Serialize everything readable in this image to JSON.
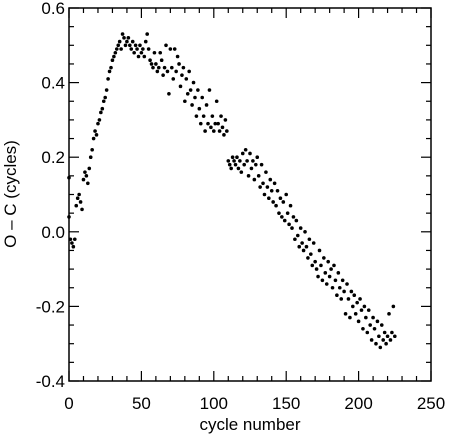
{
  "chart_data": {
    "type": "scatter",
    "xlabel": "cycle number",
    "ylabel": "O – C (cycles)",
    "xlim": [
      0,
      250
    ],
    "ylim": [
      -0.4,
      0.6
    ],
    "xticks": [
      0,
      50,
      100,
      150,
      200,
      250
    ],
    "xtick_labels": [
      "0",
      "50",
      "100",
      "150",
      "200",
      "250"
    ],
    "yticks": [
      -0.4,
      -0.2,
      0.0,
      0.2,
      0.4,
      0.6
    ],
    "ytick_labels": [
      "-0.4",
      "-0.2",
      "0.0",
      "0.2",
      "0.4",
      "0.6"
    ],
    "grid": false,
    "marker_color": "#000000",
    "points": [
      [
        0,
        0.145
      ],
      [
        0,
        0.04
      ],
      [
        1,
        -0.02
      ],
      [
        2,
        -0.03
      ],
      [
        3,
        -0.04
      ],
      [
        4,
        -0.02
      ],
      [
        5,
        0.07
      ],
      [
        6,
        0.09
      ],
      [
        7,
        0.1
      ],
      [
        8,
        0.08
      ],
      [
        9,
        0.06
      ],
      [
        10,
        0.14
      ],
      [
        11,
        0.16
      ],
      [
        12,
        0.15
      ],
      [
        13,
        0.13
      ],
      [
        14,
        0.17
      ],
      [
        15,
        0.2
      ],
      [
        16,
        0.22
      ],
      [
        17,
        0.25
      ],
      [
        18,
        0.27
      ],
      [
        19,
        0.26
      ],
      [
        20,
        0.29
      ],
      [
        21,
        0.3
      ],
      [
        22,
        0.32
      ],
      [
        23,
        0.33
      ],
      [
        24,
        0.35
      ],
      [
        25,
        0.36
      ],
      [
        26,
        0.38
      ],
      [
        27,
        0.41
      ],
      [
        28,
        0.43
      ],
      [
        29,
        0.44
      ],
      [
        30,
        0.46
      ],
      [
        31,
        0.47
      ],
      [
        32,
        0.48
      ],
      [
        33,
        0.49
      ],
      [
        34,
        0.5
      ],
      [
        35,
        0.51
      ],
      [
        36,
        0.49
      ],
      [
        37,
        0.53
      ],
      [
        38,
        0.52
      ],
      [
        39,
        0.5
      ],
      [
        40,
        0.51
      ],
      [
        41,
        0.52
      ],
      [
        42,
        0.5
      ],
      [
        43,
        0.49
      ],
      [
        44,
        0.51
      ],
      [
        45,
        0.48
      ],
      [
        46,
        0.5
      ],
      [
        47,
        0.49
      ],
      [
        48,
        0.47
      ],
      [
        49,
        0.5
      ],
      [
        50,
        0.48
      ],
      [
        51,
        0.49
      ],
      [
        52,
        0.47
      ],
      [
        53,
        0.51
      ],
      [
        54,
        0.53
      ],
      [
        55,
        0.49
      ],
      [
        56,
        0.46
      ],
      [
        57,
        0.45
      ],
      [
        58,
        0.44
      ],
      [
        59,
        0.48
      ],
      [
        60,
        0.45
      ],
      [
        61,
        0.43
      ],
      [
        62,
        0.44
      ],
      [
        63,
        0.48
      ],
      [
        64,
        0.46
      ],
      [
        65,
        0.42
      ],
      [
        66,
        0.44
      ],
      [
        67,
        0.5
      ],
      [
        68,
        0.43
      ],
      [
        69,
        0.37
      ],
      [
        70,
        0.49
      ],
      [
        71,
        0.44
      ],
      [
        72,
        0.41
      ],
      [
        73,
        0.49
      ],
      [
        74,
        0.43
      ],
      [
        75,
        0.47
      ],
      [
        76,
        0.45
      ],
      [
        77,
        0.39
      ],
      [
        78,
        0.42
      ],
      [
        79,
        0.44
      ],
      [
        80,
        0.35
      ],
      [
        81,
        0.41
      ],
      [
        82,
        0.37
      ],
      [
        83,
        0.43
      ],
      [
        84,
        0.38
      ],
      [
        85,
        0.34
      ],
      [
        86,
        0.4
      ],
      [
        87,
        0.36
      ],
      [
        88,
        0.31
      ],
      [
        89,
        0.38
      ],
      [
        90,
        0.33
      ],
      [
        91,
        0.29
      ],
      [
        92,
        0.36
      ],
      [
        93,
        0.31
      ],
      [
        94,
        0.27
      ],
      [
        95,
        0.34
      ],
      [
        96,
        0.29
      ],
      [
        97,
        0.38
      ],
      [
        98,
        0.28
      ],
      [
        99,
        0.31
      ],
      [
        100,
        0.27
      ],
      [
        101,
        0.29
      ],
      [
        102,
        0.35
      ],
      [
        103,
        0.29
      ],
      [
        104,
        0.27
      ],
      [
        105,
        0.31
      ],
      [
        106,
        0.28
      ],
      [
        107,
        0.26
      ],
      [
        108,
        0.3
      ],
      [
        109,
        0.27
      ],
      [
        110,
        0.19
      ],
      [
        111,
        0.18
      ],
      [
        112,
        0.17
      ],
      [
        113,
        0.2
      ],
      [
        114,
        0.19
      ],
      [
        115,
        0.18
      ],
      [
        116,
        0.2
      ],
      [
        117,
        0.17
      ],
      [
        118,
        0.19
      ],
      [
        119,
        0.16
      ],
      [
        120,
        0.21
      ],
      [
        121,
        0.18
      ],
      [
        122,
        0.22
      ],
      [
        123,
        0.19
      ],
      [
        124,
        0.15
      ],
      [
        125,
        0.21
      ],
      [
        126,
        0.17
      ],
      [
        127,
        0.19
      ],
      [
        128,
        0.14
      ],
      [
        129,
        0.18
      ],
      [
        130,
        0.2
      ],
      [
        131,
        0.15
      ],
      [
        132,
        0.12
      ],
      [
        133,
        0.18
      ],
      [
        134,
        0.13
      ],
      [
        135,
        0.1
      ],
      [
        136,
        0.16
      ],
      [
        137,
        0.12
      ],
      [
        138,
        0.09
      ],
      [
        139,
        0.14
      ],
      [
        140,
        0.11
      ],
      [
        141,
        0.08
      ],
      [
        142,
        0.13
      ],
      [
        143,
        0.07
      ],
      [
        144,
        0.11
      ],
      [
        145,
        0.05
      ],
      [
        146,
        0.09
      ],
      [
        147,
        0.04
      ],
      [
        148,
        0.08
      ],
      [
        149,
        0.03
      ],
      [
        150,
        0.1
      ],
      [
        151,
        0.05
      ],
      [
        152,
        0.02
      ],
      [
        153,
        0.07
      ],
      [
        154,
        0.01
      ],
      [
        155,
        0.04
      ],
      [
        156,
        -0.02
      ],
      [
        157,
        0.03
      ],
      [
        158,
        -0.01
      ],
      [
        159,
        -0.04
      ],
      [
        160,
        0.01
      ],
      [
        161,
        -0.03
      ],
      [
        162,
        -0.05
      ],
      [
        163,
        0.0
      ],
      [
        164,
        -0.04
      ],
      [
        165,
        -0.07
      ],
      [
        166,
        -0.02
      ],
      [
        167,
        -0.06
      ],
      [
        168,
        -0.09
      ],
      [
        169,
        -0.03
      ],
      [
        170,
        -0.08
      ],
      [
        171,
        -0.1
      ],
      [
        172,
        -0.12
      ],
      [
        173,
        -0.05
      ],
      [
        174,
        -0.09
      ],
      [
        175,
        -0.13
      ],
      [
        176,
        -0.07
      ],
      [
        177,
        -0.11
      ],
      [
        178,
        -0.14
      ],
      [
        179,
        -0.08
      ],
      [
        180,
        -0.12
      ],
      [
        181,
        -0.1
      ],
      [
        182,
        -0.15
      ],
      [
        183,
        -0.09
      ],
      [
        184,
        -0.13
      ],
      [
        185,
        -0.17
      ],
      [
        186,
        -0.11
      ],
      [
        187,
        -0.15
      ],
      [
        188,
        -0.18
      ],
      [
        189,
        -0.13
      ],
      [
        190,
        -0.16
      ],
      [
        191,
        -0.22
      ],
      [
        192,
        -0.14
      ],
      [
        193,
        -0.18
      ],
      [
        194,
        -0.23
      ],
      [
        195,
        -0.16
      ],
      [
        196,
        -0.2
      ],
      [
        197,
        -0.17
      ],
      [
        198,
        -0.22
      ],
      [
        199,
        -0.19
      ],
      [
        200,
        -0.24
      ],
      [
        201,
        -0.18
      ],
      [
        202,
        -0.21
      ],
      [
        203,
        -0.26
      ],
      [
        204,
        -0.2
      ],
      [
        205,
        -0.23
      ],
      [
        206,
        -0.27
      ],
      [
        207,
        -0.21
      ],
      [
        208,
        -0.25
      ],
      [
        209,
        -0.29
      ],
      [
        210,
        -0.23
      ],
      [
        211,
        -0.26
      ],
      [
        212,
        -0.3
      ],
      [
        213,
        -0.24
      ],
      [
        214,
        -0.28
      ],
      [
        215,
        -0.31
      ],
      [
        216,
        -0.25
      ],
      [
        217,
        -0.29
      ],
      [
        218,
        -0.27
      ],
      [
        219,
        -0.3
      ],
      [
        220,
        -0.28
      ],
      [
        221,
        -0.22
      ],
      [
        222,
        -0.29
      ],
      [
        223,
        -0.27
      ],
      [
        224,
        -0.2
      ],
      [
        225,
        -0.28
      ]
    ]
  }
}
